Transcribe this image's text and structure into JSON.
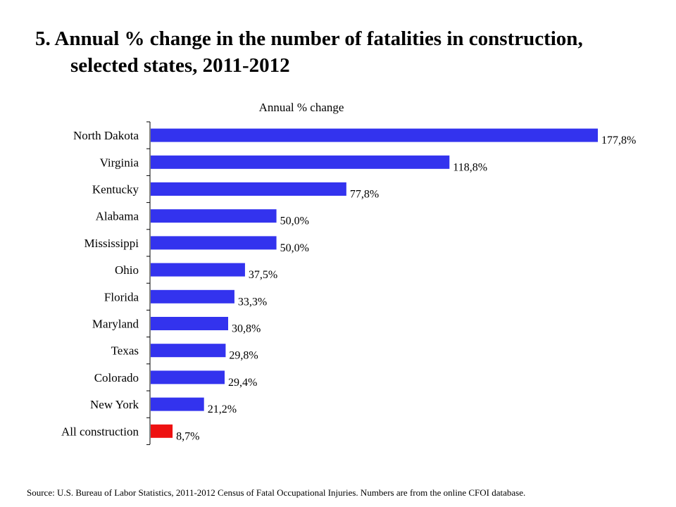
{
  "title_line1": "5. Annual % change in the number of fatalities in construction,",
  "title_line2": "selected states, 2011-2012",
  "source": "Source: U.S. Bureau of Labor Statistics, 2011-2012 Census of Fatal Occupational Injuries. Numbers are from the online CFOI database.",
  "colors": {
    "states": "#3333ee",
    "total": "#ee1111"
  },
  "chart_data": {
    "type": "bar",
    "orientation": "horizontal",
    "title": "Annual % change",
    "categories": [
      "North Dakota",
      "Virginia",
      "Kentucky",
      "Alabama",
      "Mississippi",
      "Ohio",
      "Florida",
      "Maryland",
      "Texas",
      "Colorado",
      "New York",
      "All construction"
    ],
    "values": [
      177.8,
      118.8,
      77.8,
      50.0,
      50.0,
      37.5,
      33.3,
      30.8,
      29.8,
      29.4,
      21.2,
      8.7
    ],
    "data_labels": [
      "177,8%",
      "118,8%",
      "77,8%",
      "50,0%",
      "50,0%",
      "37,5%",
      "33,3%",
      "30,8%",
      "29,8%",
      "29,4%",
      "21,2%",
      "8,7%"
    ],
    "highlight": [
      "state",
      "state",
      "state",
      "state",
      "state",
      "state",
      "state",
      "state",
      "state",
      "state",
      "state",
      "total"
    ],
    "xlim": [
      0,
      177.8
    ],
    "grid": false,
    "legend": "none"
  }
}
